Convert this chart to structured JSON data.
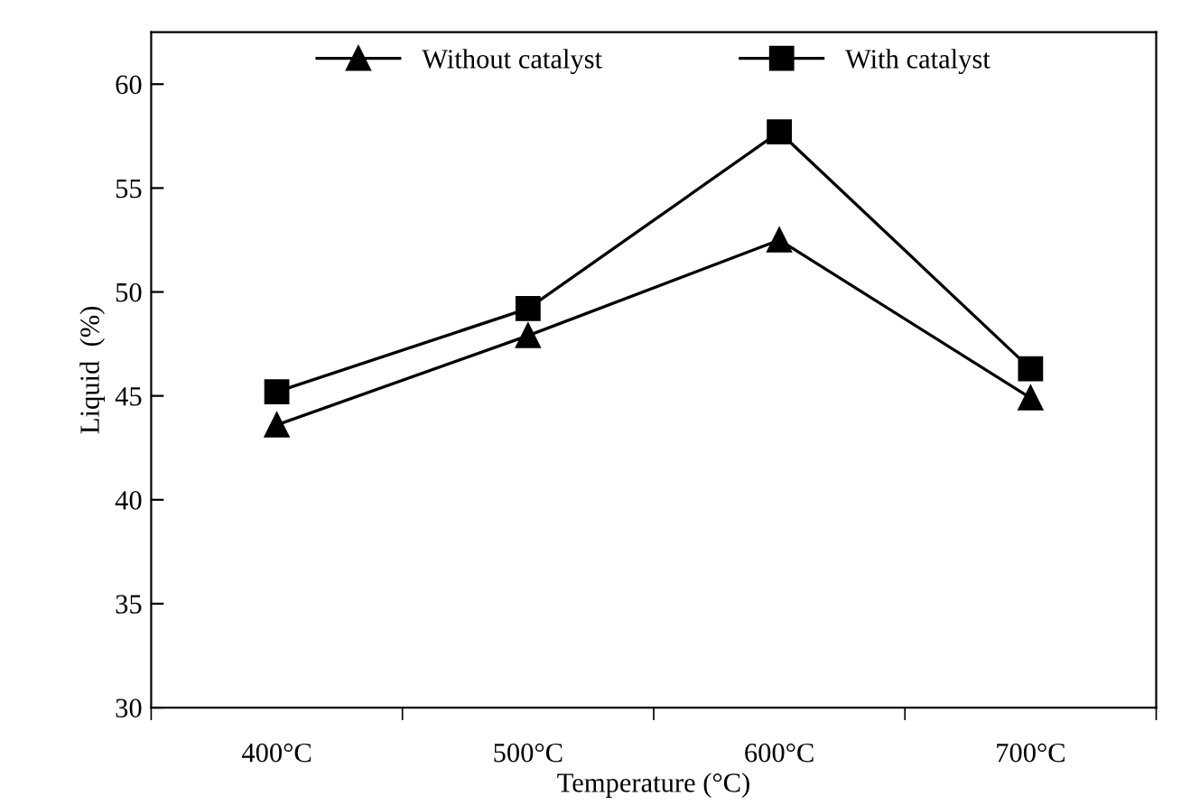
{
  "chart_data": {
    "type": "line",
    "xlabel": "Temperature (°C)",
    "ylabel": "Liquid  (%)",
    "categories": [
      "400°C",
      "500°C",
      "600°C",
      "700°C"
    ],
    "series": [
      {
        "name": "Without catalyst",
        "color": "#000000",
        "marker": "triangle",
        "values": [
          43.6,
          47.9,
          52.5,
          44.9
        ]
      },
      {
        "name": "With catalyst",
        "color": "#000000",
        "marker": "square",
        "values": [
          45.2,
          49.2,
          57.7,
          46.3
        ]
      }
    ],
    "ylim": [
      30,
      62.5
    ],
    "yticks": [
      30,
      35,
      40,
      45,
      50,
      55,
      60
    ],
    "grid": false,
    "legend": "top",
    "line_style": "solid"
  }
}
